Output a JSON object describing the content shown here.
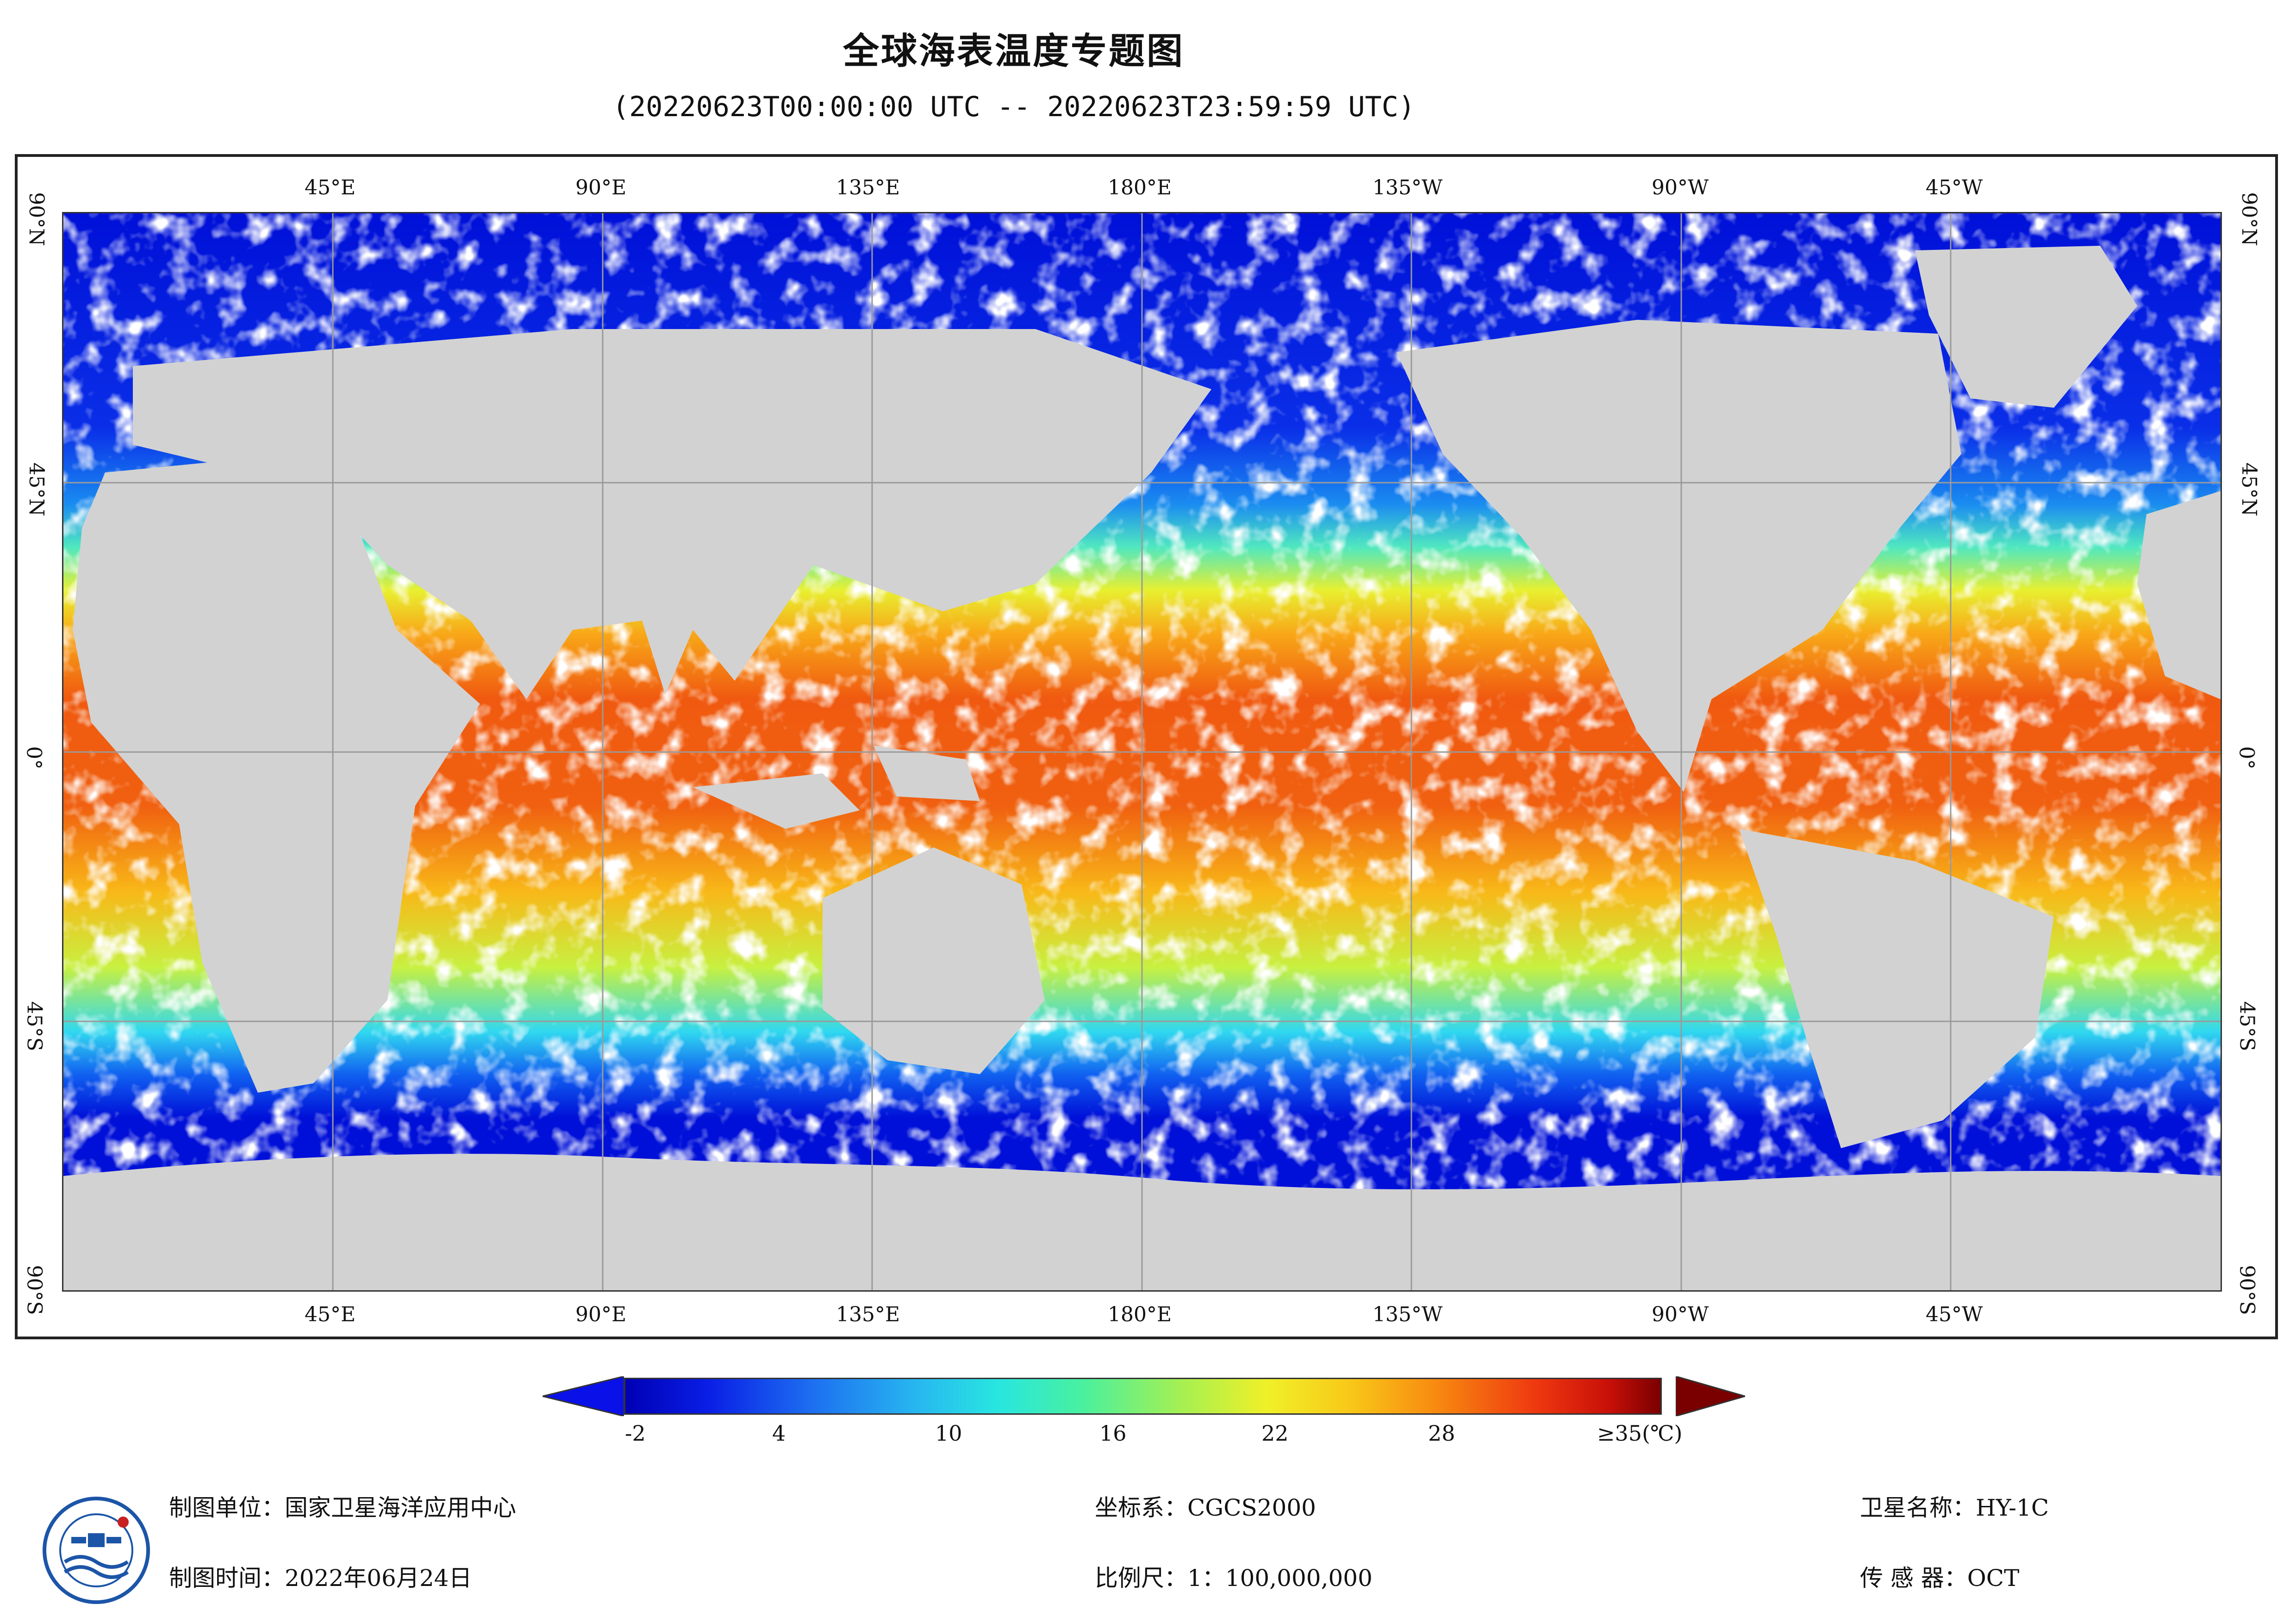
{
  "title": "全球海表温度专题图",
  "subtitle": "(20220623T00:00:00 UTC -- 20220623T23:59:59 UTC)",
  "map": {
    "top_lon_labels": [
      "45°E",
      "90°E",
      "135°E",
      "180°E",
      "135°W",
      "90°W",
      "45°W"
    ],
    "bottom_lon_labels": [
      "45°E",
      "90°E",
      "135°E",
      "180°E",
      "135°W",
      "90°W",
      "45°W"
    ],
    "left_lat_labels": [
      "90°N",
      "45°N",
      "0°",
      "45°S",
      "90°S"
    ],
    "right_lat_labels": [
      "90°N",
      "45°N",
      "0°",
      "45°S",
      "90°S"
    ],
    "colors": {
      "land": "#d2d2d2",
      "no_data": "#ffffff",
      "grid": "#9a9a9a"
    }
  },
  "legend": {
    "ticks": [
      "-2",
      "4",
      "10",
      "16",
      "22",
      "28"
    ],
    "max_label": "≥35(℃)",
    "min_arrow_color": "#0a10e8",
    "max_arrow_color": "#7a0000"
  },
  "footer": {
    "unit_label": "制图单位：",
    "unit_value": "国家卫星海洋应用中心",
    "time_label": "制图时间：",
    "time_value": "2022年06月24日",
    "crs_label": "坐标系：",
    "crs_value": "CGCS2000",
    "scale_label": "比例尺：",
    "scale_value": "1：100,000,000",
    "satellite_label": "卫星名称：",
    "satellite_value": "HY-1C",
    "sensor_label": "传 感 器：",
    "sensor_value": "OCT"
  }
}
